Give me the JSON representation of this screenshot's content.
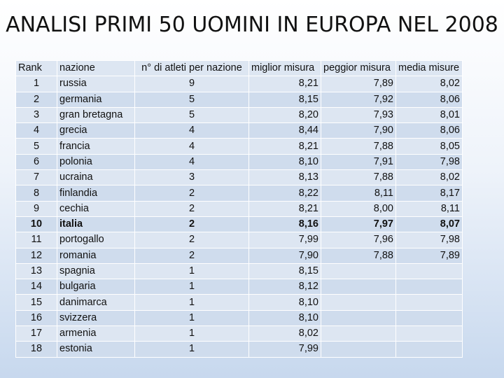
{
  "title": "ANALISI PRIMI 50 UOMINI IN EUROPA NEL 2008",
  "table": {
    "headers": [
      "Rank",
      "nazione",
      "n° di atleti per nazione",
      "miglior misura",
      "peggior misura",
      "media misure"
    ],
    "rows": [
      {
        "rank": "1",
        "nazione": "russia",
        "atleti": "9",
        "miglior": "8,21",
        "peggior": "7,89",
        "media": "8,02"
      },
      {
        "rank": "2",
        "nazione": "germania",
        "atleti": "5",
        "miglior": "8,15",
        "peggior": "7,92",
        "media": "8,06"
      },
      {
        "rank": "3",
        "nazione": "gran bretagna",
        "atleti": "5",
        "miglior": "8,20",
        "peggior": "7,93",
        "media": "8,01"
      },
      {
        "rank": "4",
        "nazione": "grecia",
        "atleti": "4",
        "miglior": "8,44",
        "peggior": "7,90",
        "media": "8,06"
      },
      {
        "rank": "5",
        "nazione": "francia",
        "atleti": "4",
        "miglior": "8,21",
        "peggior": "7,88",
        "media": "8,05"
      },
      {
        "rank": "6",
        "nazione": "polonia",
        "atleti": "4",
        "miglior": "8,10",
        "peggior": "7,91",
        "media": "7,98"
      },
      {
        "rank": "7",
        "nazione": "ucraina",
        "atleti": "3",
        "miglior": "8,13",
        "peggior": "7,88",
        "media": "8,02"
      },
      {
        "rank": "8",
        "nazione": "finlandia",
        "atleti": "2",
        "miglior": "8,22",
        "peggior": "8,11",
        "media": "8,17"
      },
      {
        "rank": "9",
        "nazione": "cechia",
        "atleti": "2",
        "miglior": "8,21",
        "peggior": "8,00",
        "media": "8,11"
      },
      {
        "rank": "10",
        "nazione": "italia",
        "atleti": "2",
        "miglior": "8,16",
        "peggior": "7,97",
        "media": "8,07",
        "highlight": true
      },
      {
        "rank": "11",
        "nazione": "portogallo",
        "atleti": "2",
        "miglior": "7,99",
        "peggior": "7,96",
        "media": "7,98"
      },
      {
        "rank": "12",
        "nazione": "romania",
        "atleti": "2",
        "miglior": "7,90",
        "peggior": "7,88",
        "media": "7,89"
      },
      {
        "rank": "13",
        "nazione": "spagnia",
        "atleti": "1",
        "miglior": "8,15",
        "peggior": "",
        "media": ""
      },
      {
        "rank": "14",
        "nazione": "bulgaria",
        "atleti": "1",
        "miglior": "8,12",
        "peggior": "",
        "media": ""
      },
      {
        "rank": "15",
        "nazione": "danimarca",
        "atleti": "1",
        "miglior": "8,10",
        "peggior": "",
        "media": ""
      },
      {
        "rank": "16",
        "nazione": "svizzera",
        "atleti": "1",
        "miglior": "8,10",
        "peggior": "",
        "media": ""
      },
      {
        "rank": "17",
        "nazione": "armenia",
        "atleti": "1",
        "miglior": "8,02",
        "peggior": "",
        "media": ""
      },
      {
        "rank": "18",
        "nazione": "estonia",
        "atleti": "1",
        "miglior": "7,99",
        "peggior": "",
        "media": ""
      }
    ]
  }
}
